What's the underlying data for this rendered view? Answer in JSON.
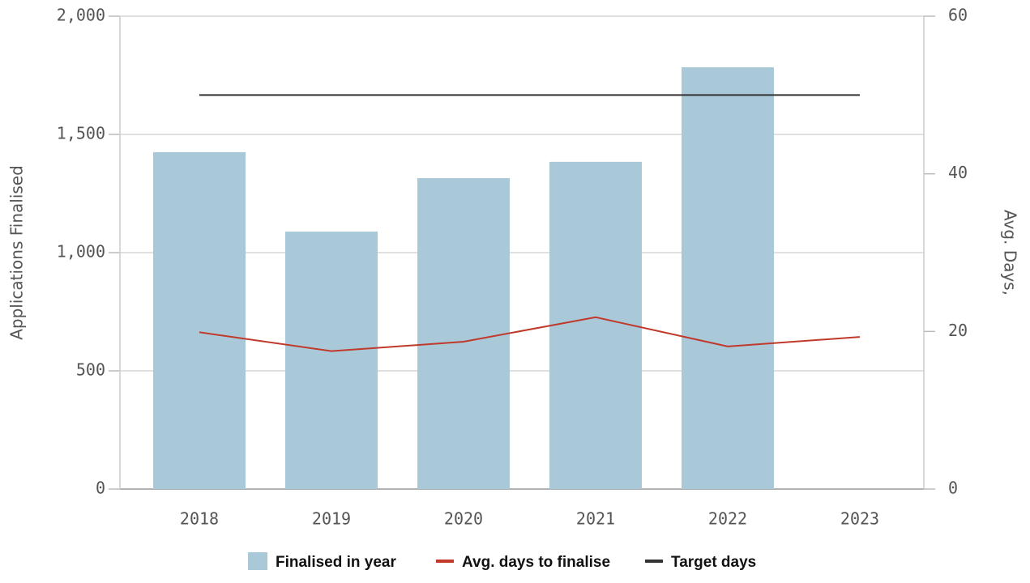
{
  "chart_data": {
    "type": "bar",
    "categories": [
      "2018",
      "2019",
      "2020",
      "2021",
      "2022",
      "2023"
    ],
    "series": [
      {
        "name": "Finalised in year",
        "type": "bar",
        "color": "#a9c8d8",
        "values": [
          1425,
          1089,
          1315,
          1384,
          1784,
          null
        ]
      },
      {
        "name": "Avg. days to finalise",
        "type": "line",
        "axis": "y2",
        "color": "#c0392b",
        "values": [
          19.9,
          17.5,
          18.7,
          21.8,
          18.1,
          19.3
        ]
      },
      {
        "name": "Target days",
        "type": "line",
        "axis": "y2",
        "color": "#333333",
        "values": [
          50,
          50,
          50,
          50,
          50,
          50
        ]
      }
    ],
    "ylabel": "Applications Finalised",
    "y2label": "Avg. Days,",
    "ylim": [
      0,
      2000
    ],
    "yticks": [
      0,
      500,
      {
        "value": 1000,
        "label": "1,000"
      },
      {
        "value": 1500,
        "label": "1,500"
      },
      {
        "value": 2000,
        "label": "2,000"
      }
    ],
    "y2lim": [
      0,
      60
    ],
    "y2ticks": [
      0,
      20,
      40,
      60
    ],
    "grid": true,
    "legend": "bottom"
  }
}
